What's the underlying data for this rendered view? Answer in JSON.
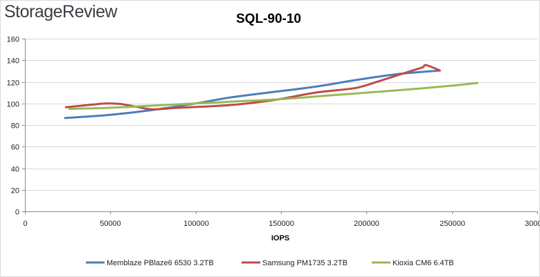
{
  "brand": {
    "logo_text": "StorageReview"
  },
  "chart_data": {
    "type": "line",
    "title": "SQL-90-10",
    "xlabel": "IOPS",
    "ylabel": "",
    "xlim": [
      0,
      300000
    ],
    "ylim": [
      0,
      160
    ],
    "x_ticks": [
      0,
      50000,
      100000,
      150000,
      200000,
      250000,
      300000
    ],
    "x_tick_labels": [
      "0",
      "50000",
      "100000",
      "150000",
      "200000",
      "250000",
      "300000"
    ],
    "y_ticks": [
      0,
      20,
      40,
      60,
      80,
      100,
      120,
      140,
      160
    ],
    "y_tick_labels": [
      "0",
      "20",
      "40",
      "60",
      "80",
      "100",
      "120",
      "140",
      "160"
    ],
    "grid": {
      "horizontal": true,
      "vertical": false
    },
    "legend_position": "bottom",
    "series": [
      {
        "name": "Memblaze PBlaze6 6530 3.2TB",
        "color": "#4a7ebb",
        "x": [
          23500,
          50000,
          75000,
          100000,
          120000,
          145000,
          170000,
          195000,
          220000,
          243000
        ],
        "y": [
          86.5,
          89.5,
          94,
          100,
          105.5,
          110.5,
          115.5,
          122,
          127.5,
          130.5
        ]
      },
      {
        "name": "Samsung PM1735 3.2TB",
        "color": "#be4b48",
        "x": [
          24000,
          40000,
          48000,
          56000,
          65000,
          75000,
          90000,
          120000,
          145000,
          170000,
          190000,
          198000,
          210000,
          220000,
          228000,
          233000,
          235000,
          243000
        ],
        "y": [
          96.5,
          99,
          100,
          99.5,
          97,
          94.5,
          96,
          98.5,
          103,
          110,
          113.5,
          116,
          122,
          127,
          131,
          133.5,
          135.5,
          130.5
        ]
      },
      {
        "name": "Kioxia CM6 6.4TB",
        "color": "#98b954",
        "x": [
          26000,
          50000,
          75000,
          100000,
          125000,
          150000,
          175000,
          200000,
          225000,
          250000,
          265000
        ],
        "y": [
          95,
          96,
          98,
          100,
          102,
          104,
          107,
          110,
          113,
          116.5,
          119
        ]
      }
    ]
  }
}
